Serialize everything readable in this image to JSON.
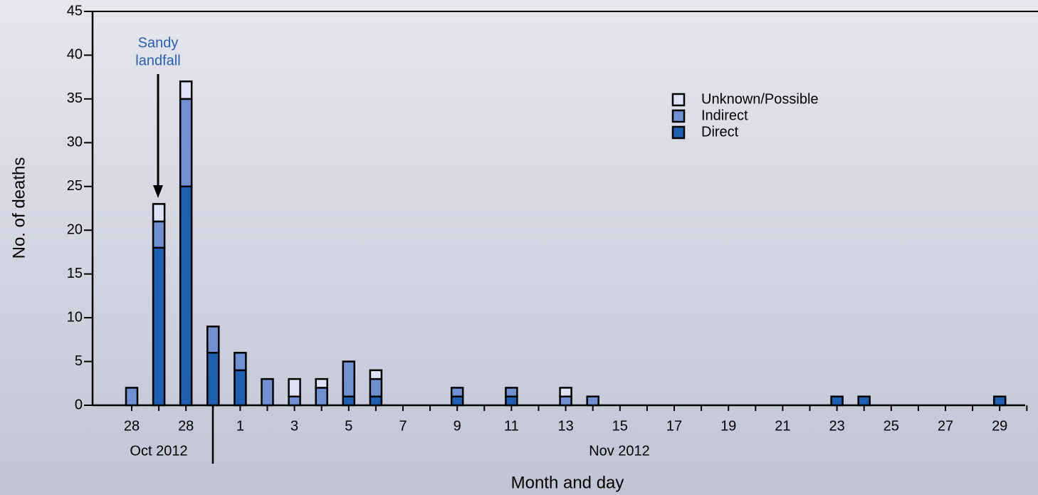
{
  "chart_data": {
    "type": "stacked_bar",
    "annotation": [
      "Sandy",
      "landfall"
    ],
    "xlabel": "Month and day",
    "ylabel": "No. of deaths",
    "month_labels": [
      "Oct 2012",
      "Nov 2012"
    ],
    "categories": [
      "28",
      null,
      "28",
      null,
      "1",
      null,
      "3",
      null,
      "5",
      null,
      "7",
      null,
      "9",
      null,
      "11",
      null,
      "13",
      null,
      "15",
      null,
      "17",
      null,
      "19",
      null,
      "21",
      null,
      "23",
      null,
      "25",
      null,
      "27",
      null,
      "29",
      null
    ],
    "series": [
      {
        "name": "Direct",
        "color": "#1f5fb0",
        "values": [
          0,
          18,
          25,
          6,
          4,
          0,
          0,
          0,
          1,
          1,
          0,
          0,
          1,
          0,
          1,
          0,
          0,
          0,
          0,
          0,
          0,
          0,
          0,
          0,
          0,
          0,
          1,
          1,
          0,
          0,
          0,
          0,
          1,
          0
        ]
      },
      {
        "name": "Indirect",
        "color": "#7090d2",
        "values": [
          2,
          3,
          10,
          3,
          2,
          3,
          1,
          2,
          4,
          2,
          0,
          0,
          1,
          0,
          1,
          0,
          1,
          1,
          0,
          0,
          0,
          0,
          0,
          0,
          0,
          0,
          0,
          0,
          0,
          0,
          0,
          0,
          0,
          0
        ]
      },
      {
        "name": "Unknown/Possible",
        "color": "#dfe2f6",
        "values": [
          0,
          2,
          2,
          0,
          0,
          0,
          2,
          1,
          0,
          1,
          0,
          0,
          0,
          0,
          0,
          0,
          1,
          0,
          0,
          0,
          0,
          0,
          0,
          0,
          0,
          0,
          0,
          0,
          0,
          0,
          0,
          0,
          0,
          0
        ]
      }
    ],
    "ylim": [
      0,
      45
    ],
    "yticks": [
      0,
      5,
      10,
      15,
      20,
      25,
      30,
      35,
      40,
      45
    ],
    "grid": false,
    "legend": "upper right"
  }
}
